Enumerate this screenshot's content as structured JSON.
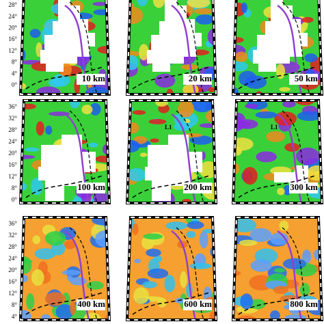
{
  "rows": [
    {
      "lat_labels": [
        "28°",
        "24°",
        "20°",
        "16°",
        "12°",
        "8°",
        "4°",
        "0°"
      ]
    },
    {
      "lat_labels": [
        "36°",
        "32°",
        "28°",
        "24°",
        "20°",
        "16°",
        "12°",
        "8°",
        "0°"
      ]
    },
    {
      "lat_labels": [
        "36°",
        "32°",
        "28°",
        "24°",
        "20°",
        "16°",
        "12°",
        "8°",
        "4°"
      ]
    }
  ],
  "panels": [
    {
      "label": "10 km"
    },
    {
      "label": "20 km"
    },
    {
      "label": "50 km"
    },
    {
      "label": "100 km"
    },
    {
      "label": "200 km",
      "annotation": "L1"
    },
    {
      "label": "300 km",
      "annotation": "L1"
    },
    {
      "label": "400 km"
    },
    {
      "label": "600 km"
    },
    {
      "label": "800 km"
    }
  ]
}
